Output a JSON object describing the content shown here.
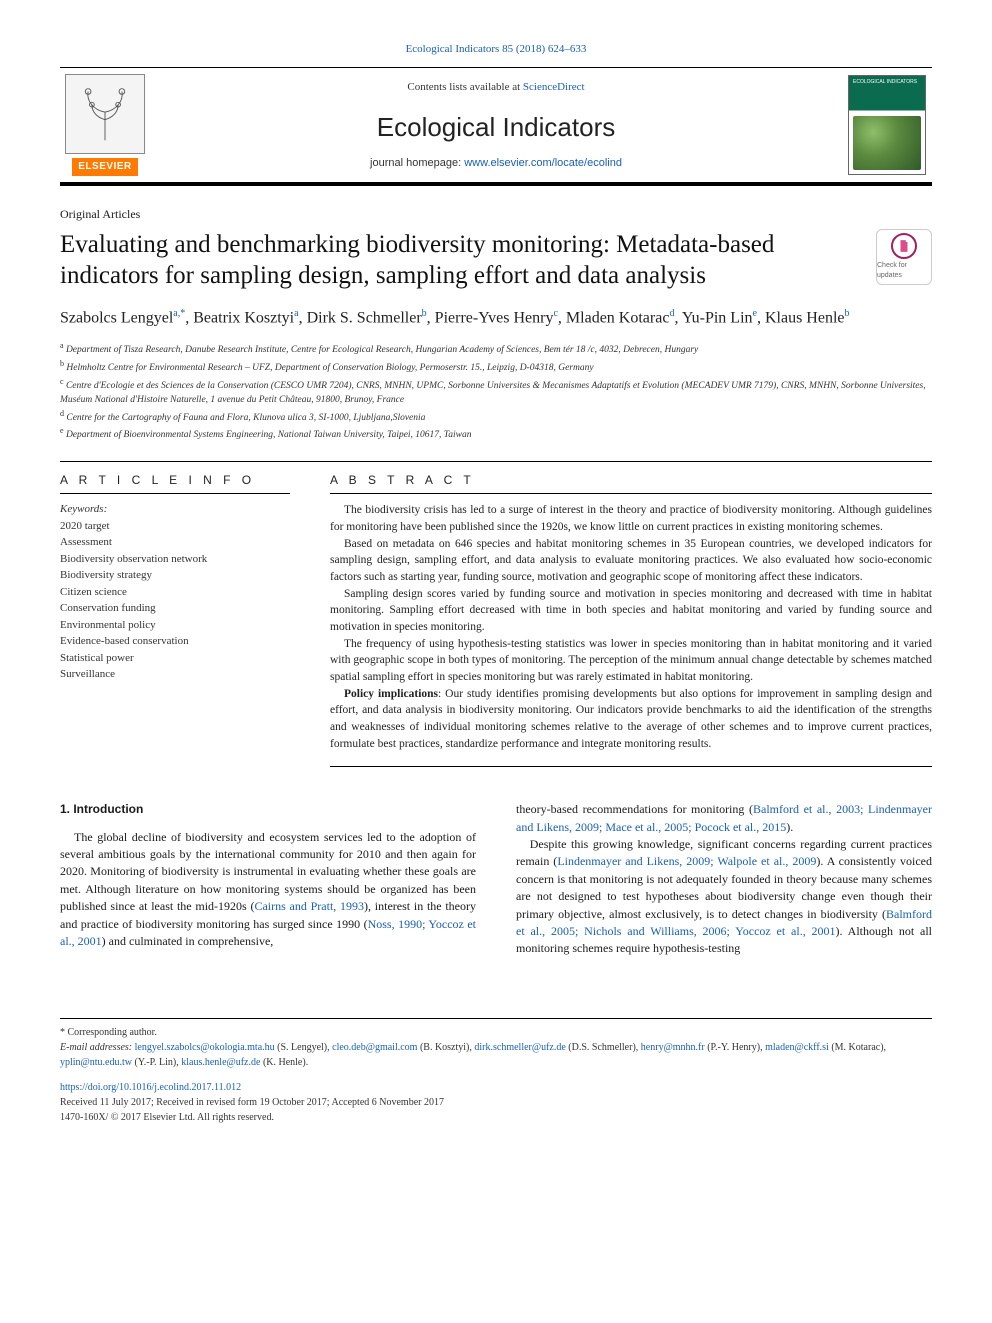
{
  "citation": "Ecological Indicators 85 (2018) 624–633",
  "masthead": {
    "contents_prefix": "Contents lists available at ",
    "contents_link": "ScienceDirect",
    "journal": "Ecological Indicators",
    "homepage_prefix": "journal homepage: ",
    "homepage_url": "www.elsevier.com/locate/ecolind",
    "publisher_badge": "ELSEVIER",
    "cover_label": "ECOLOGICAL INDICATORS"
  },
  "article": {
    "type": "Original Articles",
    "title": "Evaluating and benchmarking biodiversity monitoring: Metadata-based indicators for sampling design, sampling effort and data analysis",
    "updates_badge": "Check for updates",
    "authors_html": "Szabolcs Lengyel<sup>a,*</sup>, Beatrix Kosztyi<sup>a</sup>, Dirk S. Schmeller<sup>b</sup>, Pierre-Yves Henry<sup>c</sup>, Mladen Kotarac<sup>d</sup>, Yu-Pin Lin<sup>e</sup>, Klaus Henle<sup>b</sup>",
    "affiliations": [
      "a Department of Tisza Research, Danube Research Institute, Centre for Ecological Research, Hungarian Academy of Sciences, Bem tér 18 /c, 4032, Debrecen, Hungary",
      "b Helmholtz Centre for Environmental Research – UFZ, Department of Conservation Biology, Permoserstr. 15., Leipzig, D-04318, Germany",
      "c Centre d'Ecologie et des Sciences de la Conservation (CESCO UMR 7204), CNRS, MNHN, UPMC, Sorbonne Universites & Mecanismes Adaptatifs et Evolution (MECADEV UMR 7179), CNRS, MNHN, Sorbonne Universites, Muséum National d'Histoire Naturelle, 1 avenue du Petit Château, 91800, Brunoy, France",
      "d Centre for the Cartography of Fauna and Flora, Klunova ulica 3, SI-1000, Ljubljana,Slovenia",
      "e Department of Bioenvironmental Systems Engineering, National Taiwan University, Taipei, 10617, Taiwan"
    ]
  },
  "info_heading": "A R T I C L E   I N F O",
  "abstract_heading": "A B S T R A C T",
  "keywords_label": "Keywords:",
  "keywords": [
    "2020 target",
    "Assessment",
    "Biodiversity observation network",
    "Biodiversity strategy",
    "Citizen science",
    "Conservation funding",
    "Environmental policy",
    "Evidence-based conservation",
    "Statistical power",
    "Surveillance"
  ],
  "abstract_paragraphs": [
    "The biodiversity crisis has led to a surge of interest in the theory and practice of biodiversity monitoring. Although guidelines for monitoring have been published since the 1920s, we know little on current practices in existing monitoring schemes.",
    "Based on metadata on 646 species and habitat monitoring schemes in 35 European countries, we developed indicators for sampling design, sampling effort, and data analysis to evaluate monitoring practices. We also evaluated how socio-economic factors such as starting year, funding source, motivation and geographic scope of monitoring affect these indicators.",
    "Sampling design scores varied by funding source and motivation in species monitoring and decreased with time in habitat monitoring. Sampling effort decreased with time in both species and habitat monitoring and varied by funding source and motivation in species monitoring.",
    "The frequency of using hypothesis-testing statistics was lower in species monitoring than in habitat monitoring and it varied with geographic scope in both types of monitoring. The perception of the minimum annual change detectable by schemes matched spatial sampling effort in species monitoring but was rarely estimated in habitat monitoring.",
    "Policy implications: Our study identifies promising developments but also options for improvement in sampling design and effort, and data analysis in biodiversity monitoring. Our indicators provide benchmarks to aid the identification of the strengths and weaknesses of individual monitoring schemes relative to the average of other schemes and to improve current practices, formulate best practices, standardize performance and integrate monitoring results."
  ],
  "body": {
    "heading": "1. Introduction",
    "left_html": "The global decline of biodiversity and ecosystem services led to the adoption of several ambitious goals by the international community for 2010 and then again for 2020. Monitoring of biodiversity is instrumental in evaluating whether these goals are met. Although literature on how monitoring systems should be organized has been published since at least the mid-1920s (<a class='ref' href='#'>Cairns and Pratt, 1993</a>), interest in the theory and practice of biodiversity monitoring has surged since 1990 (<a class='ref' href='#'>Noss, 1990; Yoccoz et al., 2001</a>) and culminated in comprehensive,",
    "right_html": "theory-based recommendations for monitoring (<a class='ref' href='#'>Balmford et al., 2003; Lindenmayer and Likens, 2009; Mace et al., 2005; Pocock et al., 2015</a>).<br>&nbsp;&nbsp;&nbsp;Despite this growing knowledge, significant concerns regarding current practices remain (<a class='ref' href='#'>Lindenmayer and Likens, 2009; Walpole et al., 2009</a>). A consistently voiced concern is that monitoring is not adequately founded in theory because many schemes are not designed to test hypotheses about biodiversity change even though their primary objective, almost exclusively, is to detect changes in biodiversity (<a class='ref' href='#'>Balmford et al., 2005; Nichols and Williams, 2006; Yoccoz et al., 2001</a>). Although not all monitoring schemes require hypothesis-testing"
  },
  "footnotes": {
    "corr": "* Corresponding author.",
    "emails_label": "E-mail addresses: ",
    "emails_html": "<a href='#'>lengyel.szabolcs@okologia.mta.hu</a> (S. Lengyel), <a href='#'>cleo.deb@gmail.com</a> (B. Kosztyi), <a href='#'>dirk.schmeller@ufz.de</a> (D.S. Schmeller), <a href='#'>henry@mnhn.fr</a> (P.-Y. Henry), <a href='#'>mladen@ckff.si</a> (M. Kotarac), <a href='#'>yplin@ntu.edu.tw</a> (Y.-P. Lin), <a href='#'>klaus.henle@ufz.de</a> (K. Henle)."
  },
  "doi": {
    "url": "https://doi.org/10.1016/j.ecolind.2017.11.012",
    "history": "Received 11 July 2017; Received in revised form 19 October 2017; Accepted 6 November 2017",
    "copyright": "1470-160X/ © 2017 Elsevier Ltd. All rights reserved."
  },
  "colors": {
    "link": "#1a5fb4",
    "publisher_orange": "#ff7a00",
    "cover_green": "#0a6b4f",
    "crossmark_pink": "#d94f8e"
  }
}
